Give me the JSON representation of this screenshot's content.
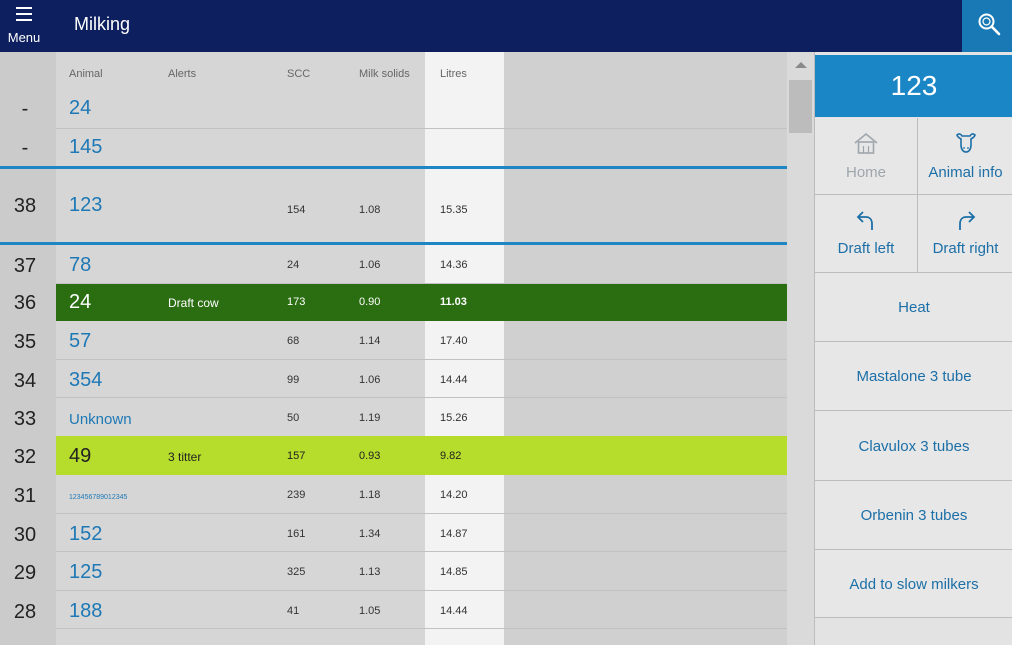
{
  "topbar": {
    "menu_label": "Menu",
    "title": "Milking"
  },
  "table": {
    "headers": {
      "animal": "Animal",
      "alerts": "Alerts",
      "scc": "SCC",
      "milk_solids": "Milk solids",
      "litres": "Litres"
    },
    "rows": [
      {
        "num": "-",
        "animal": "24",
        "alert": "",
        "scc": "",
        "ms": "",
        "litres": ""
      },
      {
        "num": "-",
        "animal": "145",
        "alert": "",
        "scc": "",
        "ms": "",
        "litres": ""
      },
      {
        "num": "38",
        "animal": "123",
        "alert": "",
        "scc": "154",
        "ms": "1.08",
        "litres": "15.35"
      },
      {
        "num": "37",
        "animal": "78",
        "alert": "",
        "scc": "24",
        "ms": "1.06",
        "litres": "14.36"
      },
      {
        "num": "36",
        "animal": "24",
        "alert": "Draft cow",
        "scc": "173",
        "ms": "0.90",
        "litres": "11.03"
      },
      {
        "num": "35",
        "animal": "57",
        "alert": "",
        "scc": "68",
        "ms": "1.14",
        "litres": "17.40"
      },
      {
        "num": "34",
        "animal": "354",
        "alert": "",
        "scc": "99",
        "ms": "1.06",
        "litres": "14.44"
      },
      {
        "num": "33",
        "animal": "Unknown",
        "alert": "",
        "scc": "50",
        "ms": "1.19",
        "litres": "15.26"
      },
      {
        "num": "32",
        "animal": "49",
        "alert": "3 titter",
        "scc": "157",
        "ms": "0.93",
        "litres": "9.82"
      },
      {
        "num": "31",
        "animal": "123456789012345",
        "alert": "",
        "scc": "239",
        "ms": "1.18",
        "litres": "14.20"
      },
      {
        "num": "30",
        "animal": "152",
        "alert": "",
        "scc": "161",
        "ms": "1.34",
        "litres": "14.87"
      },
      {
        "num": "29",
        "animal": "125",
        "alert": "",
        "scc": "325",
        "ms": "1.13",
        "litres": "14.85"
      },
      {
        "num": "28",
        "animal": "188",
        "alert": "",
        "scc": "41",
        "ms": "1.05",
        "litres": "14.44"
      }
    ]
  },
  "side_panel": {
    "selected_animal": "123",
    "home_label": "Home",
    "animal_info_label": "Animal info",
    "draft_left_label": "Draft left",
    "draft_right_label": "Draft right",
    "actions": [
      "Heat",
      "Mastalone 3 tube",
      "Clavulox 3 tubes",
      "Orbenin 3 tubes",
      "Add to slow milkers"
    ]
  },
  "colors": {
    "topbar": "#0d1f5e",
    "accent": "#1b86c6",
    "draft_row": "#2b6e12",
    "alert_row": "#b6dc2c"
  }
}
